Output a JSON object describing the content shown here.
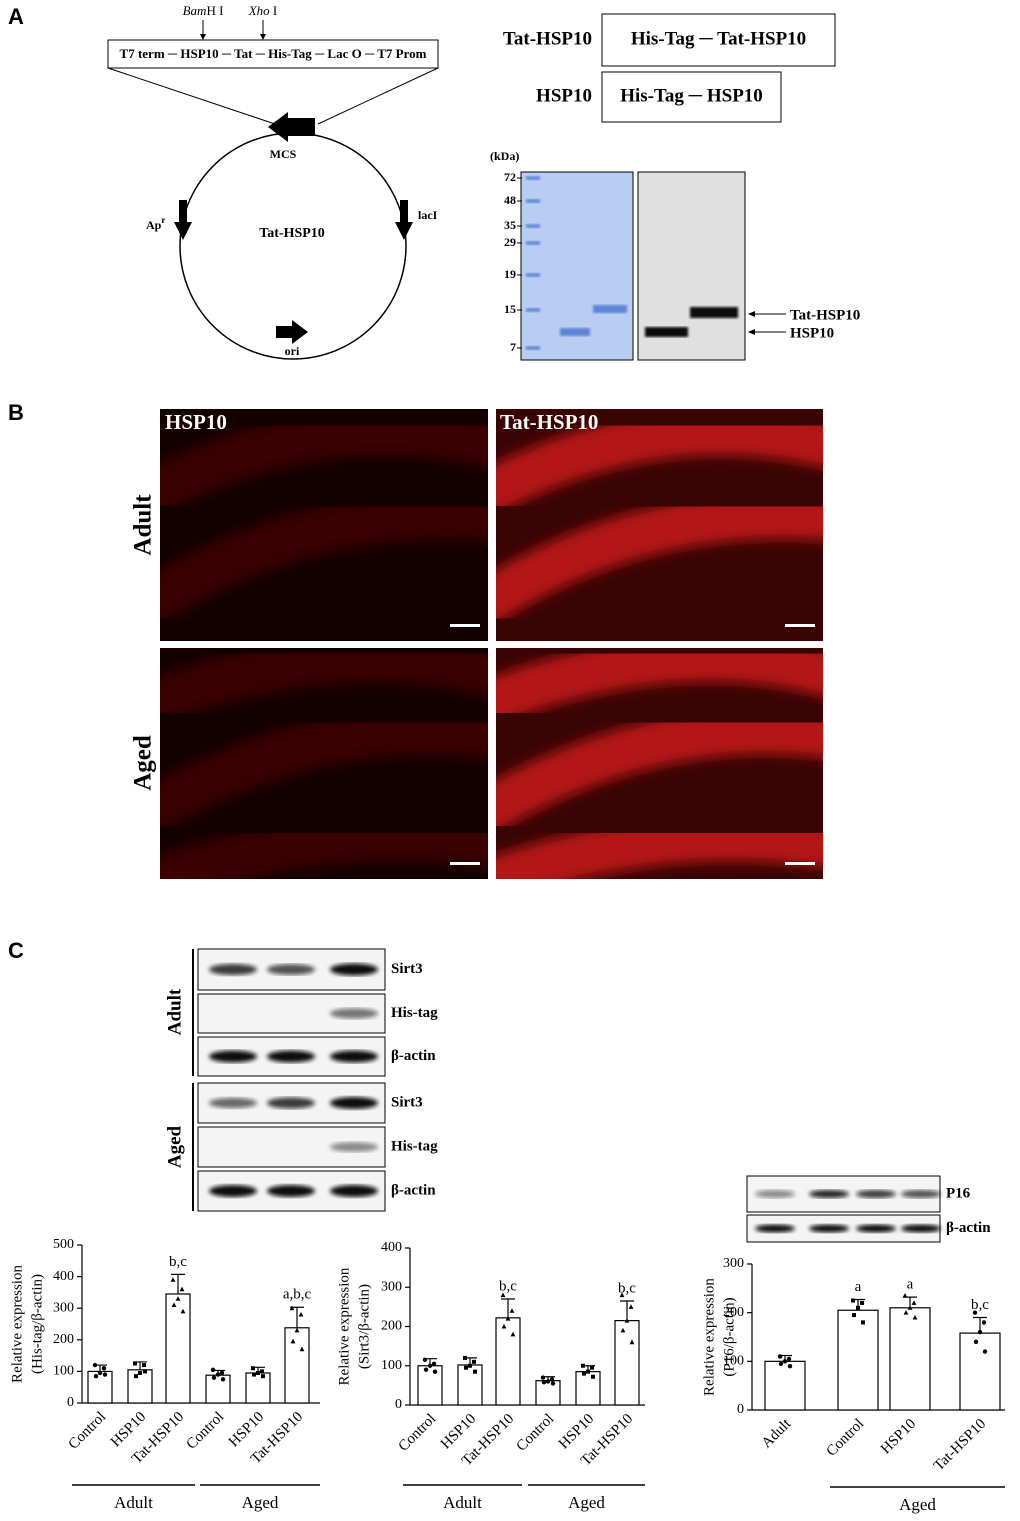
{
  "panels": {
    "a": "A",
    "b": "B",
    "c": "C"
  },
  "plasmid": {
    "sites": [
      {
        "italic": "Bam",
        "text": "H I"
      },
      {
        "italic": "Xho",
        "text": " I"
      }
    ],
    "construct": "T7 term ─ HSP10 ─ Tat ─ His-Tag ─ Lac O ─ T7 Prom",
    "mcs": "MCS",
    "amp": {
      "text": "Ap",
      "sup": "r"
    },
    "laci": "lacI",
    "name": "Tat-HSP10",
    "ori": "ori"
  },
  "constructs": [
    {
      "name": "Tat-HSP10",
      "box": "His-Tag ─ Tat-HSP10"
    },
    {
      "name": "HSP10",
      "box": "His-Tag ─ HSP10"
    }
  ],
  "gel": {
    "unit": "(kDa)",
    "markers": [
      72,
      48,
      35,
      29,
      19,
      15,
      7
    ],
    "bands": [
      "Tat-HSP10",
      "HSP10"
    ]
  },
  "images": {
    "columns": [
      "HSP10",
      "Tat-HSP10"
    ],
    "rows": [
      "Adult",
      "Aged"
    ]
  },
  "blots": {
    "groups": [
      "Adult",
      "Aged"
    ],
    "rows": [
      "Sirt3",
      "His-tag",
      "β-actin"
    ],
    "p16_rows": [
      "P16",
      "β-actin"
    ]
  },
  "chart_data": [
    {
      "type": "bar",
      "y_label": [
        "Relative expression",
        "(His-tag/β-actin)"
      ],
      "categories": [
        "Control",
        "HSP10",
        "Tat-HSP10",
        "Control",
        "HSP10",
        "Tat-HSP10"
      ],
      "groups": [
        "Adult",
        "Aged"
      ],
      "values": [
        100,
        105,
        345,
        88,
        95,
        238
      ],
      "errors": [
        20,
        25,
        62,
        15,
        18,
        65
      ],
      "points": [
        [
          120,
          110,
          95,
          85,
          90
        ],
        [
          125,
          120,
          95,
          85,
          100
        ],
        [
          390,
          360,
          330,
          310,
          290
        ],
        [
          105,
          95,
          90,
          80,
          75
        ],
        [
          110,
          100,
          95,
          90,
          85
        ],
        [
          300,
          280,
          230,
          195,
          170
        ]
      ],
      "annotations": [
        null,
        null,
        "b,c",
        null,
        null,
        "a,b,c"
      ],
      "color": "#ffffff",
      "ylim": [
        0,
        500
      ],
      "yticks": [
        0,
        100,
        200,
        300,
        400,
        500
      ]
    },
    {
      "type": "bar",
      "y_label": [
        "Relative expression",
        "(Sirt3/β-actin)"
      ],
      "categories": [
        "Control",
        "HSP10",
        "Tat-HSP10",
        "Control",
        "HSP10",
        "Tat-HSP10"
      ],
      "groups": [
        "Adult",
        "Aged"
      ],
      "values": [
        100,
        102,
        222,
        62,
        85,
        215
      ],
      "errors": [
        18,
        18,
        48,
        10,
        15,
        50
      ],
      "points": [
        [
          115,
          105,
          100,
          90,
          85
        ],
        [
          120,
          110,
          100,
          95,
          85
        ],
        [
          280,
          240,
          220,
          200,
          180
        ],
        [
          70,
          65,
          60,
          58,
          55
        ],
        [
          100,
          95,
          85,
          80,
          72
        ],
        [
          280,
          250,
          215,
          190,
          160
        ]
      ],
      "annotations": [
        null,
        null,
        "b,c",
        null,
        null,
        "b,c"
      ],
      "color": "#ffffff",
      "ylim": [
        0,
        400
      ],
      "yticks": [
        0,
        100,
        200,
        300,
        400
      ]
    },
    {
      "type": "bar",
      "y_label": [
        "Relative expression",
        "(P16/β-actin)"
      ],
      "categories": [
        "Adult",
        "Control",
        "HSP10",
        "Tat-HSP10"
      ],
      "groups": [
        "Aged"
      ],
      "values": [
        100,
        205,
        210,
        158
      ],
      "errors": [
        12,
        22,
        22,
        32
      ],
      "points": [
        [
          110,
          105,
          100,
          95,
          90
        ],
        [
          225,
          220,
          210,
          195,
          180
        ],
        [
          235,
          220,
          210,
          200,
          190
        ],
        [
          200,
          180,
          160,
          140,
          120
        ]
      ],
      "annotations": [
        null,
        "a",
        "a",
        "b,c"
      ],
      "color": "#ffffff",
      "ylim": [
        0,
        300
      ],
      "yticks": [
        0,
        100,
        200,
        300
      ]
    }
  ]
}
